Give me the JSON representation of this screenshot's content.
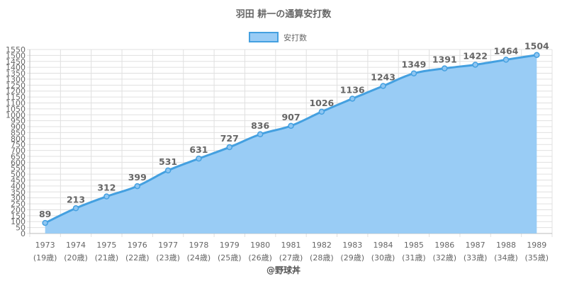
{
  "chart_data": {
    "type": "area",
    "title": "羽田 耕一の通算安打数",
    "legend": {
      "label": "安打数",
      "position": "top"
    },
    "categories": [
      "1973",
      "1974",
      "1975",
      "1976",
      "1977",
      "1978",
      "1979",
      "1980",
      "1981",
      "1982",
      "1983",
      "1984",
      "1985",
      "1986",
      "1987",
      "1988",
      "1989"
    ],
    "ages": [
      "(19歳)",
      "(20歳)",
      "(21歳)",
      "(22歳)",
      "(23歳)",
      "(24歳)",
      "(25歳)",
      "(26歳)",
      "(27歳)",
      "(28歳)",
      "(29歳)",
      "(30歳)",
      "(31歳)",
      "(32歳)",
      "(33歳)",
      "(34歳)",
      "(35歳)"
    ],
    "series": [
      {
        "name": "安打数",
        "values": [
          89,
          213,
          312,
          399,
          531,
          631,
          727,
          836,
          907,
          1026,
          1136,
          1243,
          1349,
          1391,
          1422,
          1464,
          1504
        ]
      }
    ],
    "ylim": [
      0,
      1550
    ],
    "ytick_step": 50,
    "grid": true,
    "colors": {
      "fill": "#99ccf5",
      "line": "#44a0e0",
      "grid": "#e0e0e0"
    }
  },
  "credit": "@野球丼"
}
